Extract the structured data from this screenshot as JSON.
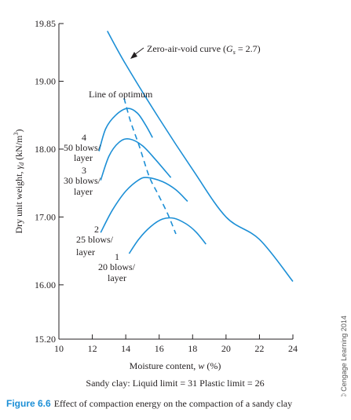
{
  "chart_data": {
    "type": "line",
    "xlabel": "Moisture content, w (%)",
    "ylabel": "Dry unit weight, γd (kN/m3)",
    "xlim": [
      10,
      24
    ],
    "ylim": [
      15.2,
      19.85
    ],
    "x_ticks": [
      "10",
      "12",
      "14",
      "16",
      "18",
      "20",
      "22",
      "24"
    ],
    "y_ticks": [
      "15.20",
      "16.00",
      "17.00",
      "18.00",
      "19.00",
      "19.85"
    ],
    "series": [
      {
        "id": "zav",
        "name": "Zero-air-void curve (Gs = 2.7)",
        "style": "solid",
        "points": [
          [
            12.9,
            19.74
          ],
          [
            14.0,
            19.25
          ],
          [
            16.0,
            18.45
          ],
          [
            18.0,
            17.7
          ],
          [
            20.0,
            17.0
          ],
          [
            22.0,
            16.67
          ],
          [
            24.0,
            16.05
          ]
        ]
      },
      {
        "id": "c4",
        "name": "4",
        "style": "solid",
        "points": [
          [
            12.4,
            17.97
          ],
          [
            12.8,
            18.3
          ],
          [
            13.4,
            18.5
          ],
          [
            14.1,
            18.6
          ],
          [
            14.7,
            18.53
          ],
          [
            15.2,
            18.35
          ],
          [
            15.6,
            18.17
          ]
        ]
      },
      {
        "id": "c3",
        "name": "3",
        "style": "solid",
        "points": [
          [
            12.5,
            17.54
          ],
          [
            13.0,
            17.9
          ],
          [
            13.6,
            18.1
          ],
          [
            14.2,
            18.15
          ],
          [
            15.0,
            18.05
          ],
          [
            15.8,
            17.84
          ],
          [
            16.7,
            17.58
          ]
        ]
      },
      {
        "id": "c2",
        "name": "2",
        "style": "solid",
        "points": [
          [
            12.5,
            16.77
          ],
          [
            13.2,
            17.1
          ],
          [
            14.0,
            17.38
          ],
          [
            14.8,
            17.55
          ],
          [
            15.3,
            17.58
          ],
          [
            16.2,
            17.52
          ],
          [
            17.0,
            17.4
          ],
          [
            17.7,
            17.23
          ]
        ]
      },
      {
        "id": "c1",
        "name": "1",
        "style": "solid",
        "points": [
          [
            14.2,
            16.46
          ],
          [
            14.8,
            16.68
          ],
          [
            15.5,
            16.86
          ],
          [
            16.2,
            16.97
          ],
          [
            16.9,
            16.98
          ],
          [
            17.6,
            16.9
          ],
          [
            18.2,
            16.78
          ],
          [
            18.8,
            16.6
          ]
        ]
      },
      {
        "id": "opt",
        "name": "Line of optimum",
        "style": "dashed",
        "points": [
          [
            13.9,
            18.75
          ],
          [
            14.3,
            18.4
          ],
          [
            14.8,
            18.05
          ],
          [
            15.4,
            17.6
          ],
          [
            15.9,
            17.35
          ],
          [
            16.5,
            17.05
          ],
          [
            17.0,
            16.75
          ]
        ]
      }
    ]
  },
  "annotations": {
    "zav_label": "Zero-air-void curve (",
    "zav_g": "G",
    "zav_s": "s",
    "zav_eq": " = 2.7)",
    "optimum_label": "Line of optimum",
    "c4_num": "4",
    "c4_text": "50 blows/",
    "c4_layer": "layer",
    "c3_num": "3",
    "c3_text": "30 blows/",
    "c3_layer": "layer",
    "c2_num": "2",
    "c2_text": "25 blows/",
    "c2_layer": "layer",
    "c1_num": "1",
    "c1_text": "20 blows/",
    "c1_layer": "layer"
  },
  "axis_titles": {
    "x_pre": "Moisture content, ",
    "x_var": "w",
    "x_post": " (%)",
    "y_pre": "Dry unit weight, ",
    "y_var": "γ",
    "y_sub": "d",
    "y_post": " (kN/m",
    "y_sup": "3",
    "y_end": ")"
  },
  "note": "Sandy clay: Liquid limit = 31 Plastic limit = 26",
  "credit": "© Cengage Learning 2014",
  "caption": {
    "label": "Figure 6.6",
    "text": "Effect of compaction energy on the compaction of a sandy clay"
  },
  "colors": {
    "curve": "#1c8fd6",
    "axis": "#231f20",
    "caption_label": "#1c8fd6"
  }
}
